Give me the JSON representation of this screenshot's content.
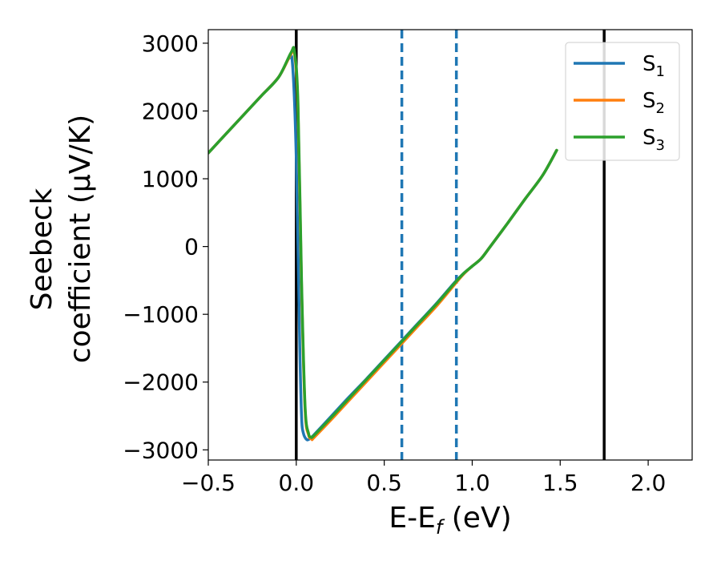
{
  "chart_data": {
    "type": "line",
    "title": "",
    "xlabel": "E-E",
    "xlabel_sub": "f",
    "xlabel_unit": " (eV)",
    "ylabel_line1": "Seebeck",
    "ylabel_line2": "coefficient  (μV/K)",
    "xlim": [
      -0.5,
      2.25
    ],
    "ylim": [
      -3150,
      3200
    ],
    "x_ticks": [
      -0.5,
      0.0,
      0.5,
      1.0,
      1.5,
      2.0
    ],
    "x_tick_labels": [
      "−0.5",
      "0.0",
      "0.5",
      "1.0",
      "1.5",
      "2.0"
    ],
    "y_ticks": [
      3000,
      2000,
      1000,
      0,
      -1000,
      -2000,
      -3000
    ],
    "y_tick_labels": [
      "3000",
      "2000",
      "1000",
      "0",
      "−1000",
      "−2000",
      "−3000"
    ],
    "legend_position": "top-right",
    "series": [
      {
        "name": "S",
        "name_sub": "1",
        "color": "#1f77b4",
        "x": [
          -0.5,
          -0.4,
          -0.3,
          -0.2,
          -0.1,
          -0.04,
          -0.02,
          0.0,
          0.02,
          0.03,
          0.04,
          0.06,
          0.08,
          0.1,
          0.2,
          0.3,
          0.4,
          0.5,
          0.6,
          0.7,
          0.8,
          0.9,
          0.95,
          1.0,
          1.05,
          1.1,
          1.2,
          1.3,
          1.4,
          1.48
        ],
        "y": [
          1380,
          1660,
          1940,
          2220,
          2500,
          2780,
          2640,
          1300,
          -1500,
          -2500,
          -2750,
          -2850,
          -2830,
          -2780,
          -2500,
          -2220,
          -1950,
          -1670,
          -1390,
          -1110,
          -830,
          -530,
          -400,
          -290,
          -180,
          -10,
          340,
          700,
          1050,
          1420
        ]
      },
      {
        "name": "S",
        "name_sub": "2",
        "color": "#ff7f0e",
        "x": [
          -0.5,
          -0.4,
          -0.3,
          -0.2,
          -0.1,
          -0.03,
          -0.01,
          0.01,
          0.03,
          0.05,
          0.07,
          0.09,
          0.1,
          0.2,
          0.3,
          0.4,
          0.5,
          0.6,
          0.7,
          0.8,
          0.9,
          0.95,
          1.0,
          1.05,
          1.1,
          1.2,
          1.3,
          1.4,
          1.48
        ],
        "y": [
          1380,
          1660,
          1940,
          2220,
          2500,
          2840,
          2850,
          2000,
          -600,
          -2400,
          -2780,
          -2840,
          -2820,
          -2550,
          -2270,
          -1990,
          -1710,
          -1430,
          -1150,
          -870,
          -560,
          -410,
          -290,
          -180,
          -10,
          340,
          700,
          1050,
          1420
        ]
      },
      {
        "name": "S",
        "name_sub": "3",
        "color": "#2ca02c",
        "x": [
          -0.5,
          -0.4,
          -0.3,
          -0.2,
          -0.1,
          -0.03,
          -0.01,
          0.01,
          0.03,
          0.05,
          0.07,
          0.085,
          0.1,
          0.2,
          0.3,
          0.4,
          0.5,
          0.6,
          0.7,
          0.8,
          0.9,
          0.95,
          1.0,
          1.05,
          1.1,
          1.2,
          1.3,
          1.4,
          1.48
        ],
        "y": [
          1380,
          1660,
          1940,
          2220,
          2500,
          2860,
          2870,
          2100,
          -500,
          -2350,
          -2760,
          -2810,
          -2790,
          -2520,
          -2240,
          -1960,
          -1680,
          -1400,
          -1120,
          -840,
          -540,
          -400,
          -290,
          -180,
          -10,
          340,
          700,
          1050,
          1420
        ]
      }
    ],
    "vlines_solid": [
      0.0,
      1.75
    ],
    "vlines_dashed": [
      0.6,
      0.91
    ],
    "vline_solid_color": "#000000",
    "vline_dashed_color": "#1f77b4"
  }
}
